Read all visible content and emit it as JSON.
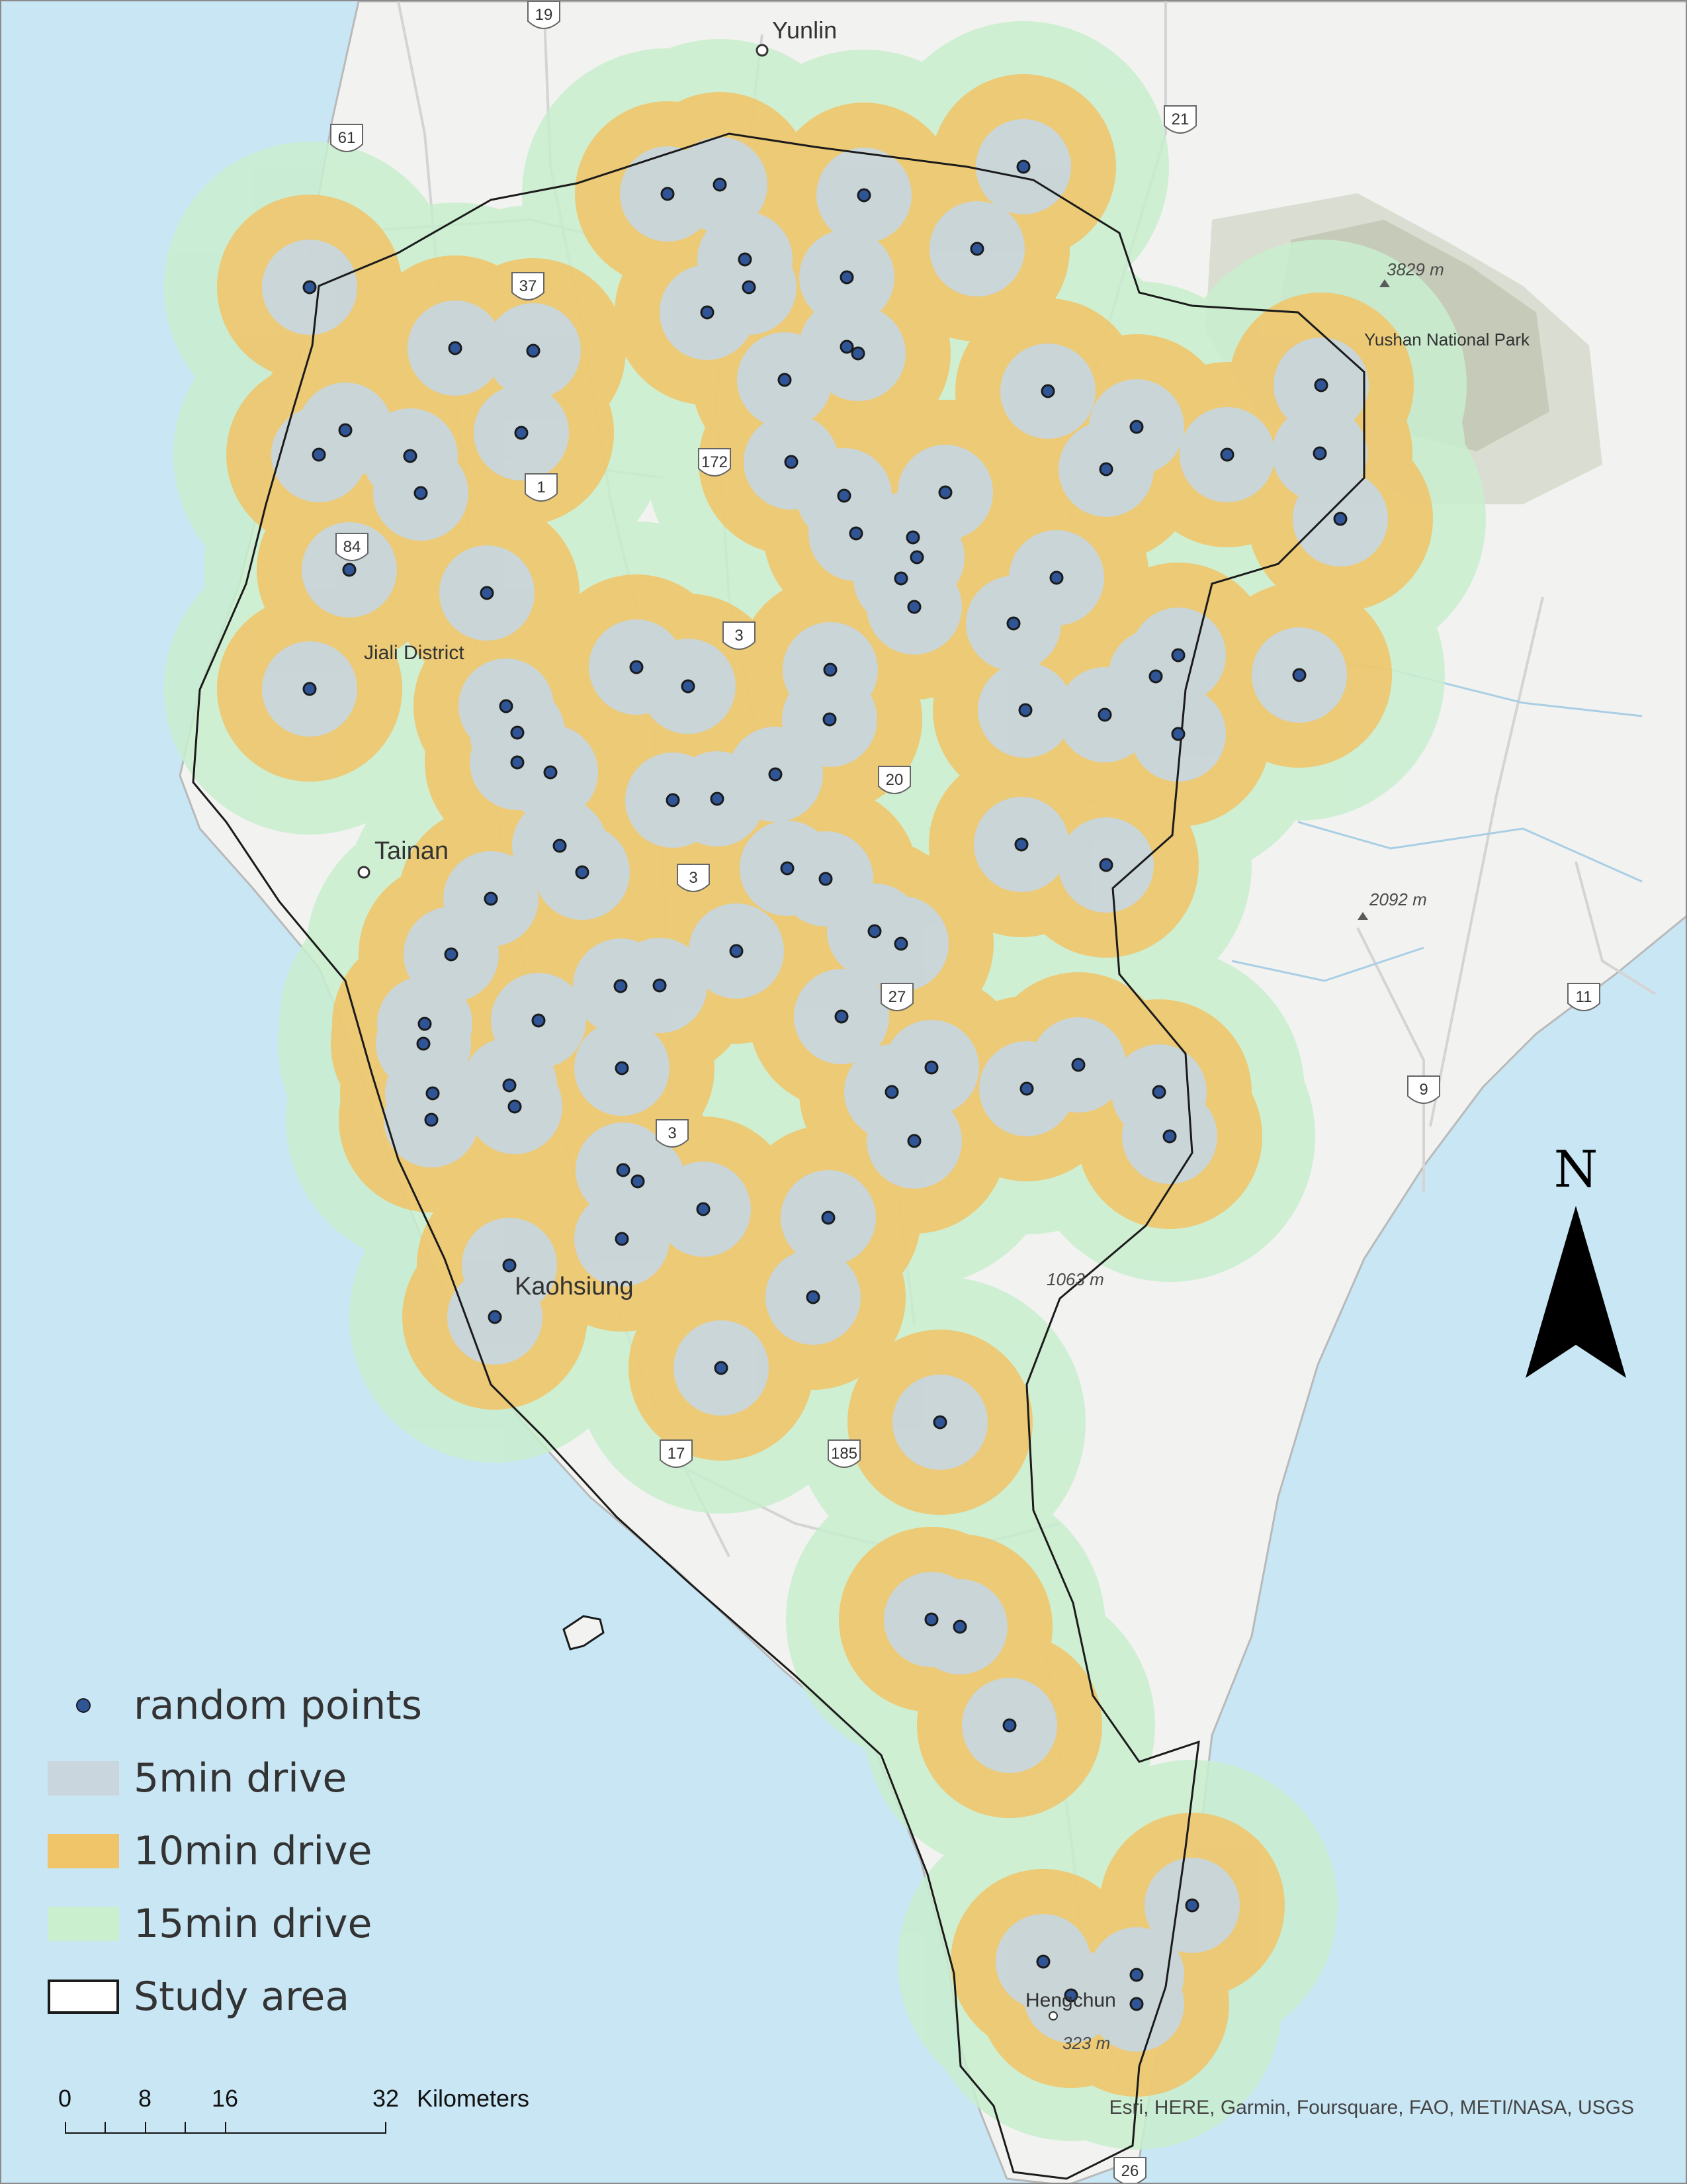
{
  "map": {
    "places": [
      {
        "id": "yunlin",
        "label": "Yunlin"
      },
      {
        "id": "tainan",
        "label": "Tainan"
      },
      {
        "id": "kaohsiung",
        "label": "Kaohsiung"
      },
      {
        "id": "jiali",
        "label": "Jiali District"
      },
      {
        "id": "hengchun",
        "label": "Hengchun"
      },
      {
        "id": "yushan",
        "label": "Yushan National Park"
      }
    ],
    "peaks": [
      {
        "id": "peak-3829",
        "label": "3829 m"
      },
      {
        "id": "peak-2092",
        "label": "2092 m"
      },
      {
        "id": "peak-1063",
        "label": "1063 m"
      },
      {
        "id": "peak-323",
        "label": "323 m"
      }
    ],
    "shields": [
      "19",
      "61",
      "21",
      "37",
      "172",
      "3",
      "20",
      "27",
      "17",
      "185",
      "9",
      "11",
      "26",
      "84",
      "1"
    ],
    "colors": {
      "sea": "#c9e6f5",
      "land": "#f2f2f0",
      "road": "#d0d0d0",
      "mountain": "#c9cfbd",
      "buffer_15min": "#c9efcf",
      "buffer_10min": "#f0c56a",
      "buffer_5min": "#c9d6de",
      "point": "#2f5597",
      "study_area_outline": "#1b1b1b"
    }
  },
  "legend": {
    "items": [
      {
        "id": "random-points",
        "label": "random points"
      },
      {
        "id": "5min",
        "label": "5min drive"
      },
      {
        "id": "10min",
        "label": "10min drive"
      },
      {
        "id": "15min",
        "label": "15min drive"
      },
      {
        "id": "study-area",
        "label": "Study area"
      }
    ]
  },
  "scalebar": {
    "ticks": [
      "0",
      "8",
      "16",
      "32"
    ],
    "unit": "Kilometers"
  },
  "north_arrow": {
    "letter": "N"
  },
  "attribution": "Esri, HERE, Garmin, Foursquare, FAO, METI/NASA, USGS",
  "random_points_count": 104
}
